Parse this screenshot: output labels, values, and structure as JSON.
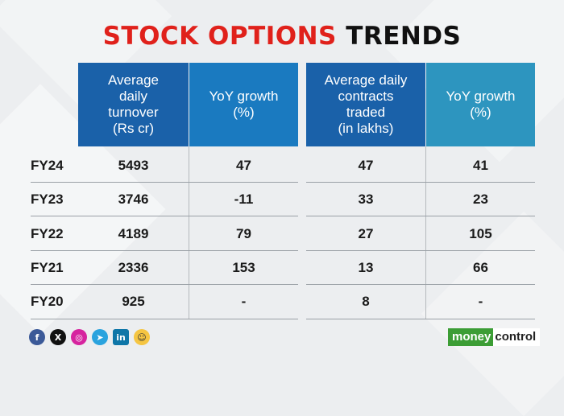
{
  "title": {
    "part1": "STOCK OPTIONS",
    "part2": "TRENDS"
  },
  "headers": [
    "Average\ndaily\nturnover\n(Rs cr)",
    "YoY growth\n(%)",
    "Average daily\ncontracts\ntraded\n(in lakhs)",
    "YoY growth\n(%)"
  ],
  "rows": [
    {
      "year": "FY24",
      "turnover": "5493",
      "turnover_growth": "47",
      "contracts": "47",
      "contracts_growth": "41"
    },
    {
      "year": "FY23",
      "turnover": "3746",
      "turnover_growth": "-11",
      "contracts": "33",
      "contracts_growth": "23"
    },
    {
      "year": "FY22",
      "turnover": "4189",
      "turnover_growth": "79",
      "contracts": "27",
      "contracts_growth": "105"
    },
    {
      "year": "FY21",
      "turnover": "2336",
      "turnover_growth": "153",
      "contracts": "13",
      "contracts_growth": "66"
    },
    {
      "year": "FY20",
      "turnover": "925",
      "turnover_growth": "-",
      "contracts": "8",
      "contracts_growth": "-"
    }
  ],
  "social_icons": [
    "facebook-icon",
    "x-icon",
    "instagram-icon",
    "telegram-icon",
    "linkedin-icon",
    "moneycontrol-app-icon"
  ],
  "logo": {
    "part1": "money",
    "part2": "control"
  },
  "colors": {
    "accent_red": "#e0211b",
    "header_blue_dark": "#1a61a9",
    "header_blue": "#1a7ac0",
    "header_teal": "#2d95bf",
    "logo_green": "#3c9d35"
  }
}
